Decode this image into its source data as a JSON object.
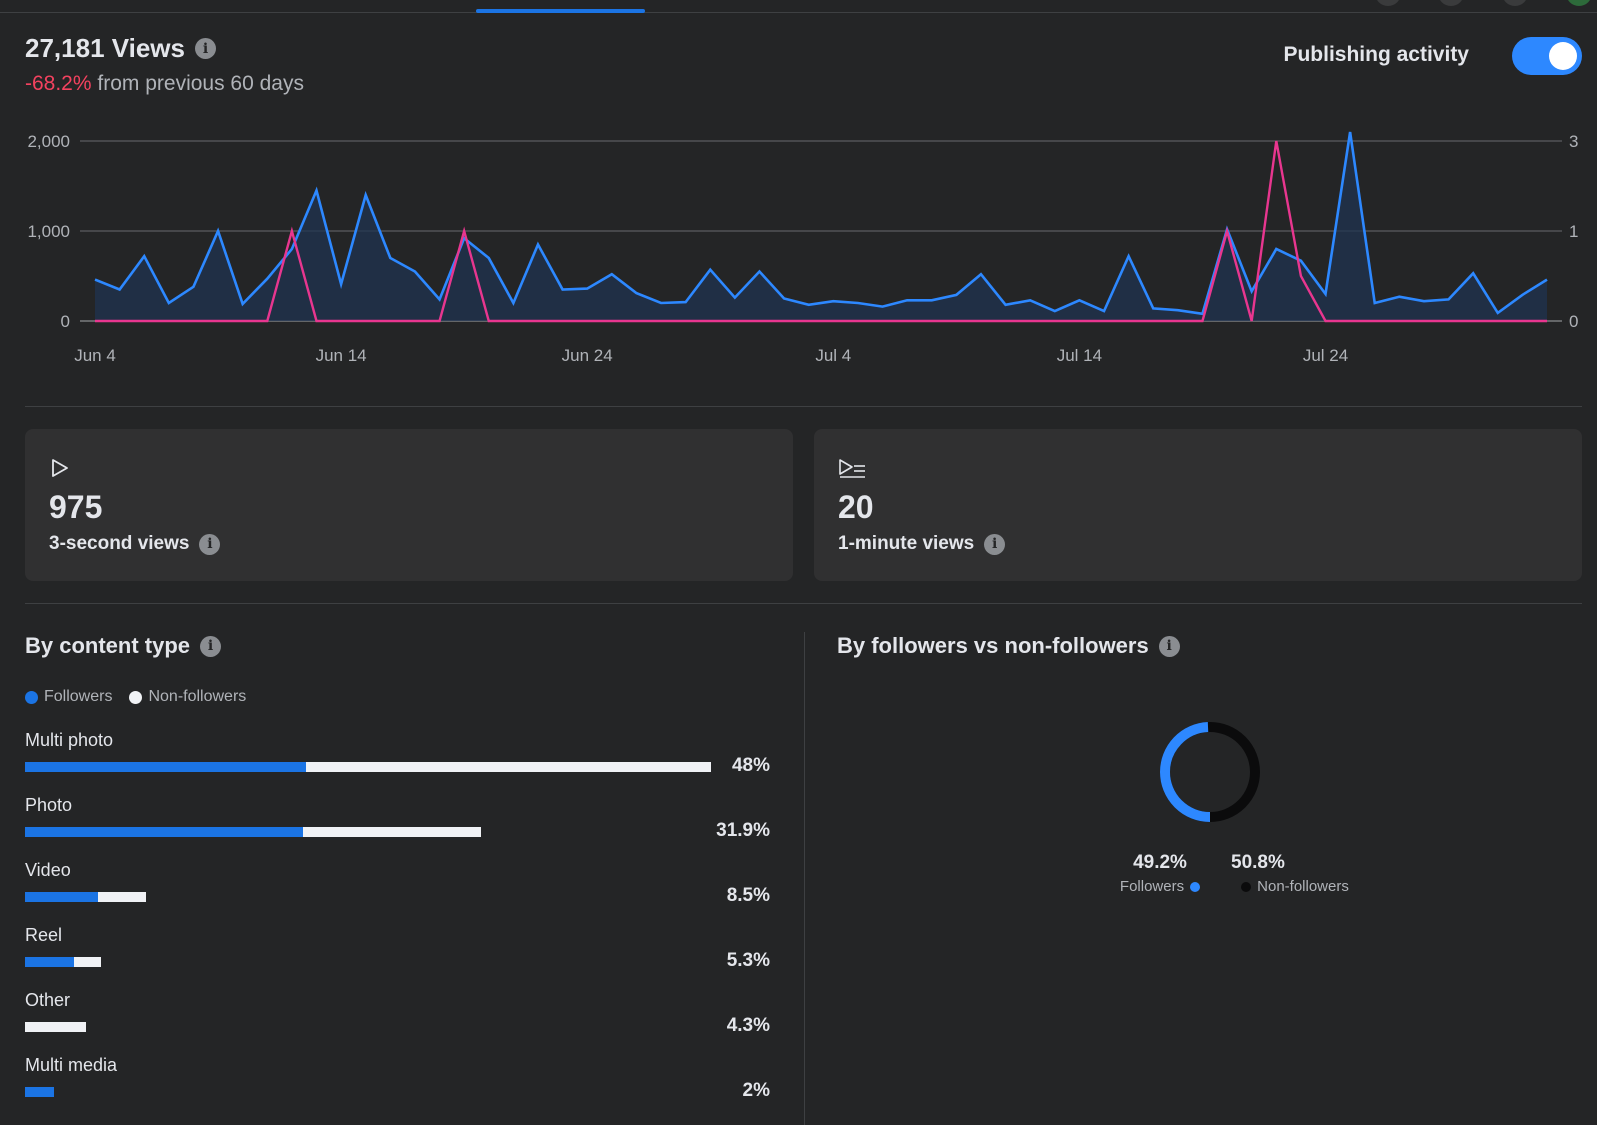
{
  "header": {
    "views_title": "27,181 Views",
    "change_percent": "-68.2%",
    "change_suffix": " from previous 60 days",
    "publishing_activity_label": "Publishing activity",
    "publishing_activity_on": true
  },
  "colors": {
    "accent_blue": "#1b74e4",
    "views_line": "#2d88ff",
    "publishing_line": "#e8368f",
    "negative": "#f3425f",
    "non_followers_bar": "#f0f2f5",
    "non_followers_donut": "#0b0b0c"
  },
  "chart_data": {
    "type": "line",
    "x_tick_labels": [
      "Jun 4",
      "Jun 14",
      "Jun 24",
      "Jul 4",
      "Jul 14",
      "Jul 24"
    ],
    "y_left_ticks": [
      "0",
      "1,000",
      "2,000"
    ],
    "y_right_ticks": [
      "0",
      "1",
      "3"
    ],
    "ylim_left": [
      0,
      2000
    ],
    "grid": true,
    "series": [
      {
        "axis": "left",
        "fill": true,
        "values": [
          460,
          350,
          720,
          200,
          380,
          1000,
          190,
          470,
          800,
          1450,
          410,
          1400,
          700,
          550,
          240,
          920,
          700,
          200,
          850,
          350,
          360,
          520,
          310,
          200,
          210,
          570,
          260,
          550,
          250,
          180,
          220,
          200,
          160,
          230,
          230,
          290,
          520,
          180,
          230,
          110,
          230,
          110,
          720,
          140,
          120,
          80,
          1020,
          330,
          800,
          670,
          300,
          2100,
          200,
          270,
          220,
          240,
          530,
          90,
          290,
          460
        ]
      },
      {
        "axis": "right",
        "values": [
          0,
          0,
          0,
          0,
          0,
          0,
          0,
          0,
          1,
          0,
          0,
          0,
          0,
          0,
          0,
          1,
          0,
          0,
          0,
          0,
          0,
          0,
          0,
          0,
          0,
          0,
          0,
          0,
          0,
          0,
          0,
          0,
          0,
          0,
          0,
          0,
          0,
          0,
          0,
          0,
          0,
          0,
          0,
          0,
          0,
          0,
          1,
          0,
          3,
          0.5,
          0,
          0,
          0,
          0,
          0,
          0,
          0,
          0,
          0,
          0
        ]
      }
    ]
  },
  "cards": [
    {
      "icon": "play-icon",
      "value": "975",
      "label": "3-second views"
    },
    {
      "icon": "play-list-icon",
      "value": "20",
      "label": "1-minute views"
    }
  ],
  "content_type": {
    "title": "By content type",
    "legend": {
      "followers": "Followers",
      "non_followers": "Non-followers"
    },
    "rows": [
      {
        "label": "Multi photo",
        "pct": "48%",
        "total": 48,
        "followers_share": 0.41
      },
      {
        "label": "Photo",
        "pct": "31.9%",
        "total": 31.9,
        "followers_share": 0.61
      },
      {
        "label": "Video",
        "pct": "8.5%",
        "total": 8.5,
        "followers_share": 0.6
      },
      {
        "label": "Reel",
        "pct": "5.3%",
        "total": 5.3,
        "followers_share": 0.65
      },
      {
        "label": "Other",
        "pct": "4.3%",
        "total": 4.3,
        "followers_share": 0.0
      },
      {
        "label": "Multi media",
        "pct": "2%",
        "total": 2,
        "followers_share": 1.0
      }
    ]
  },
  "followers_split": {
    "title": "By followers vs non-followers",
    "followers_pct": "49.2%",
    "followers_label": "Followers",
    "non_followers_pct": "50.8%",
    "non_followers_label": "Non-followers",
    "followers_value": 49.2
  }
}
